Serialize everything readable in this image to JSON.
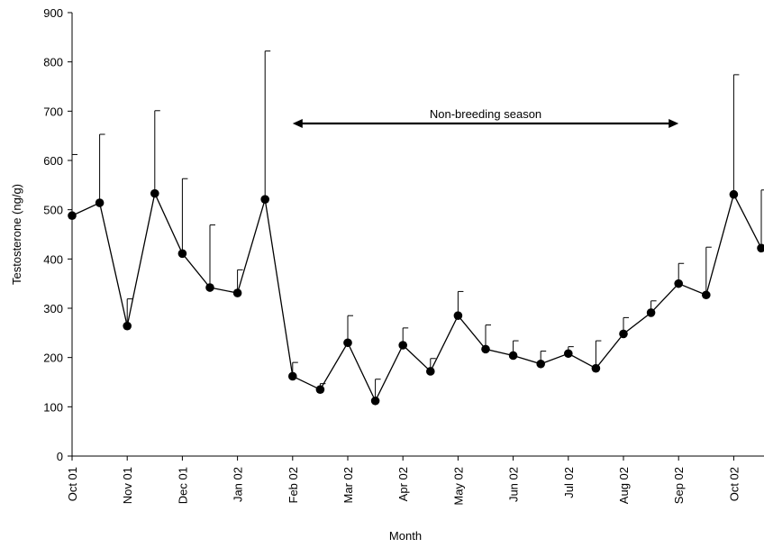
{
  "chart_data": {
    "type": "line",
    "xlabel": "Month",
    "ylabel": "Testosterone (ng/g)",
    "ylim": [
      0,
      900
    ],
    "y_ticks": [
      0,
      100,
      200,
      300,
      400,
      500,
      600,
      700,
      800,
      900
    ],
    "month_labels": [
      "Oct 01",
      "Nov 01",
      "Dec 01",
      "Jan 02",
      "Feb 02",
      "Mar 02",
      "Apr 02",
      "May 02",
      "Jun 02",
      "Jul 02",
      "Aug 02",
      "Sep 02",
      "Oct 02"
    ],
    "grid": false,
    "legend": "none",
    "series": [
      {
        "values": [
          488,
          514,
          264,
          533,
          411,
          342,
          331,
          521,
          162,
          135,
          230,
          112,
          225,
          172,
          285,
          217,
          204,
          187,
          208,
          178,
          248,
          291,
          350,
          327,
          531,
          422
        ],
        "error_upper": [
          612,
          653,
          319,
          701,
          563,
          469,
          378,
          822,
          190,
          147,
          285,
          156,
          260,
          198,
          334,
          266,
          234,
          213,
          222,
          234,
          281,
          315,
          391,
          424,
          774,
          540
        ]
      }
    ],
    "annotations": [
      {
        "text": "Non-breeding season",
        "from": "Feb 02",
        "to": "Sep 02",
        "arrow": "double-headed"
      }
    ]
  }
}
